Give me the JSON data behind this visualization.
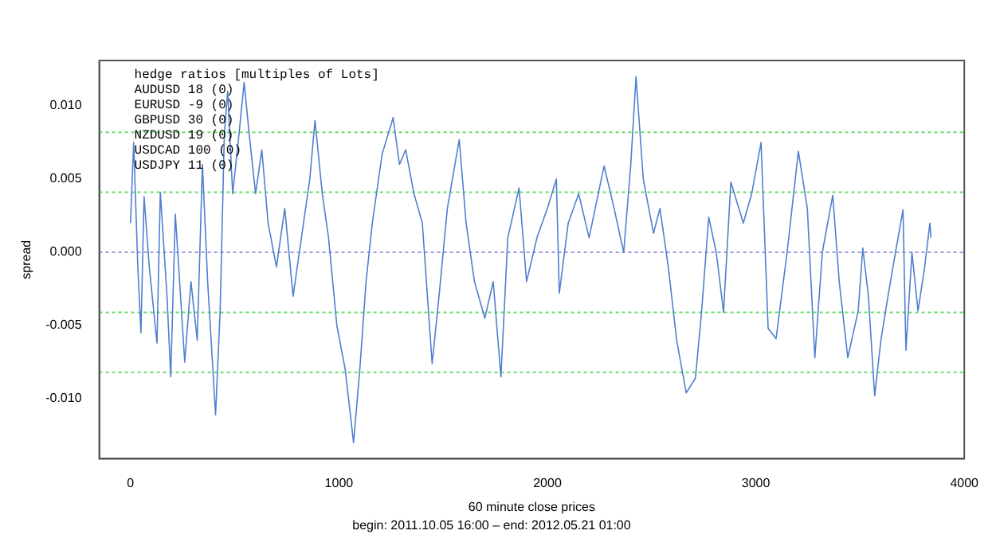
{
  "chart_data": {
    "type": "line",
    "subtitle": "begin: 2011.10.05 16:00 – end: 2012.05.21 01:00",
    "xlabel": "60 minute close prices",
    "ylabel": "spread",
    "annotations": [
      "hedge ratios [multiples of Lots]",
      "AUDUSD 18 (0)",
      "EURUSD -9 (0)",
      "GBPUSD 30 (0)",
      "NZDUSD 19 (0)",
      "USDCAD 100 (0)",
      "USDJPY 11 (0)"
    ],
    "series": [
      {
        "color": "#4f7fcf",
        "x": [
          0,
          15,
          35,
          50,
          65,
          90,
          127,
          143,
          175,
          193,
          215,
          240,
          260,
          290,
          320,
          345,
          370,
          408,
          430,
          450,
          466,
          490,
          520,
          545,
          570,
          600,
          630,
          660,
          700,
          740,
          780,
          820,
          860,
          885,
          920,
          950,
          990,
          1030,
          1070,
          1100,
          1130,
          1160,
          1207,
          1260,
          1290,
          1320,
          1360,
          1400,
          1447,
          1480,
          1520,
          1577,
          1610,
          1650,
          1700,
          1740,
          1777,
          1810,
          1864,
          1900,
          1950,
          2000,
          2043,
          2057,
          2100,
          2150,
          2200,
          2272,
          2320,
          2366,
          2400,
          2425,
          2460,
          2509,
          2540,
          2580,
          2620,
          2666,
          2710,
          2740,
          2774,
          2810,
          2845,
          2880,
          2940,
          2980,
          3025,
          3059,
          3097,
          3150,
          3204,
          3247,
          3283,
          3319,
          3369,
          3400,
          3441,
          3491,
          3513,
          3540,
          3570,
          3600,
          3634,
          3670,
          3706,
          3720,
          3749,
          3778,
          3810,
          3835,
          3840
        ],
        "values": [
          0.002,
          0.0075,
          -0.001,
          -0.0055,
          0.0038,
          -0.001,
          -0.0062,
          0.0041,
          -0.003,
          -0.0085,
          0.0026,
          -0.003,
          -0.0075,
          -0.002,
          -0.006,
          0.006,
          -0.002,
          -0.0111,
          -0.004,
          0.008,
          0.011,
          0.004,
          0.008,
          0.0116,
          0.008,
          0.004,
          0.007,
          0.002,
          -0.001,
          0.003,
          -0.003,
          0.001,
          0.005,
          0.009,
          0.004,
          0.001,
          -0.005,
          -0.008,
          -0.013,
          -0.008,
          -0.002,
          0.002,
          0.0067,
          0.0092,
          0.006,
          0.007,
          0.004,
          0.002,
          -0.0076,
          -0.003,
          0.003,
          0.0077,
          0.002,
          -0.002,
          -0.0045,
          -0.002,
          -0.0085,
          0.001,
          0.0044,
          -0.002,
          0.001,
          0.003,
          0.005,
          -0.0028,
          0.002,
          0.004,
          0.001,
          0.0059,
          0.003,
          0.0,
          0.006,
          0.012,
          0.005,
          0.0013,
          0.003,
          -0.001,
          -0.006,
          -0.0096,
          -0.0086,
          -0.004,
          0.0024,
          0.0,
          -0.0041,
          0.0048,
          0.002,
          0.004,
          0.0075,
          -0.0052,
          -0.0059,
          0.0,
          0.0069,
          0.003,
          -0.0072,
          0.0,
          0.0039,
          -0.002,
          -0.0072,
          -0.004,
          0.0003,
          -0.003,
          -0.0098,
          -0.006,
          -0.003,
          0.0,
          0.0029,
          -0.0067,
          0.0,
          -0.004,
          -0.001,
          0.002,
          0.001
        ]
      }
    ],
    "xlim": [
      -150,
      4000
    ],
    "xticks": [
      0,
      1000,
      2000,
      3000,
      4000
    ],
    "ylim": [
      -0.0141,
      0.0131
    ],
    "yticks": [
      {
        "value": -0.01,
        "label": "-0.010"
      },
      {
        "value": -0.005,
        "label": "-0.005"
      },
      {
        "value": 0,
        "label": "0.000"
      },
      {
        "value": 0.005,
        "label": "0.005"
      },
      {
        "value": 0.01,
        "label": "0.010"
      }
    ],
    "ref_lines": [
      {
        "axis": "y",
        "value": 0.0082,
        "color": "#66dd66",
        "line_style": "dotted"
      },
      {
        "axis": "y",
        "value": 0.0041,
        "color": "#66dd66",
        "line_style": "dotted"
      },
      {
        "axis": "y",
        "value": 0,
        "color": "#9999dd",
        "line_style": "dotted"
      },
      {
        "axis": "y",
        "value": -0.0041,
        "color": "#66dd66",
        "line_style": "dotted"
      },
      {
        "axis": "y",
        "value": -0.0082,
        "color": "#66dd66",
        "line_style": "dotted"
      }
    ],
    "grid": false,
    "legend": false,
    "marker": "none",
    "line_style": "solid"
  }
}
